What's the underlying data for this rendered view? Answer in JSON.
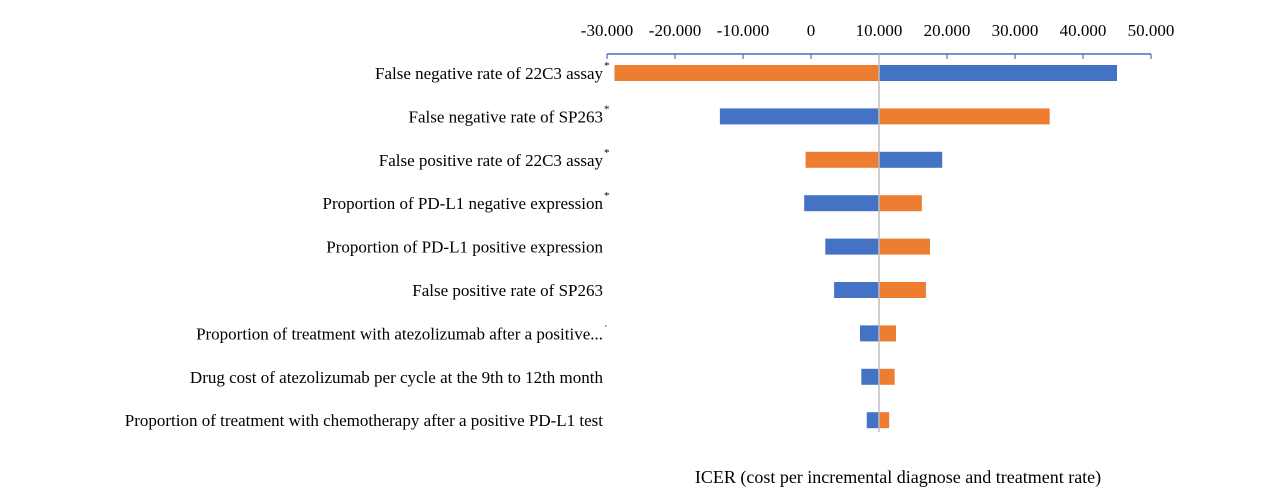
{
  "chart_data": {
    "type": "bar",
    "subtype": "tornado",
    "xlabel": "ICER (cost per incremental diagnose and treatment rate)",
    "baseline": 10000,
    "xlim": [
      -30000,
      50000
    ],
    "x_ticks": [
      {
        "value": -30000,
        "label": "-30.000"
      },
      {
        "value": -20000,
        "label": "-20.000"
      },
      {
        "value": -10000,
        "label": "-10.000"
      },
      {
        "value": 0,
        "label": "0"
      },
      {
        "value": 10000,
        "label": "10.000"
      },
      {
        "value": 20000,
        "label": "20.000"
      },
      {
        "value": 30000,
        "label": "30.000"
      },
      {
        "value": 40000,
        "label": "40.000"
      },
      {
        "value": 50000,
        "label": "50.000"
      }
    ],
    "axis_position": "top",
    "legend": "none",
    "grid": false,
    "colors": {
      "blue": "#4472C4",
      "orange": "#ED7D31",
      "baseline": "#BFBFBF",
      "axis": "#4472C4"
    },
    "categories": [
      {
        "label": "False negative rate of 22C3 assay",
        "star": "*",
        "blue": 45000,
        "orange": -28900
      },
      {
        "label": "False negative rate of SP263",
        "star": "*",
        "blue": -13400,
        "orange": 35100
      },
      {
        "label": "False positive rate of 22C3 assay",
        "star": "*",
        "blue": 19300,
        "orange": -800
      },
      {
        "label": "Proportion of PD-L1 negative expression",
        "star": "*",
        "blue": -1000,
        "orange": 16300
      },
      {
        "label": "Proportion of PD-L1 positive expression",
        "star": "",
        "blue": 2100,
        "orange": 17500
      },
      {
        "label": "False positive rate of SP263",
        "star": "",
        "blue": 3400,
        "orange": 16900
      },
      {
        "label": "Proportion of treatment with atezolizumab after a positive...",
        "star": "·",
        "blue": 7200,
        "orange": 12500
      },
      {
        "label": "Drug cost of atezolizumab per cycle at the 9th to 12th month",
        "star": "",
        "blue": 7400,
        "orange": 12300
      },
      {
        "label": "Proportion of treatment with chemotherapy after a positive PD-L1 test",
        "star": "",
        "blue": 8200,
        "orange": 11500
      }
    ]
  }
}
